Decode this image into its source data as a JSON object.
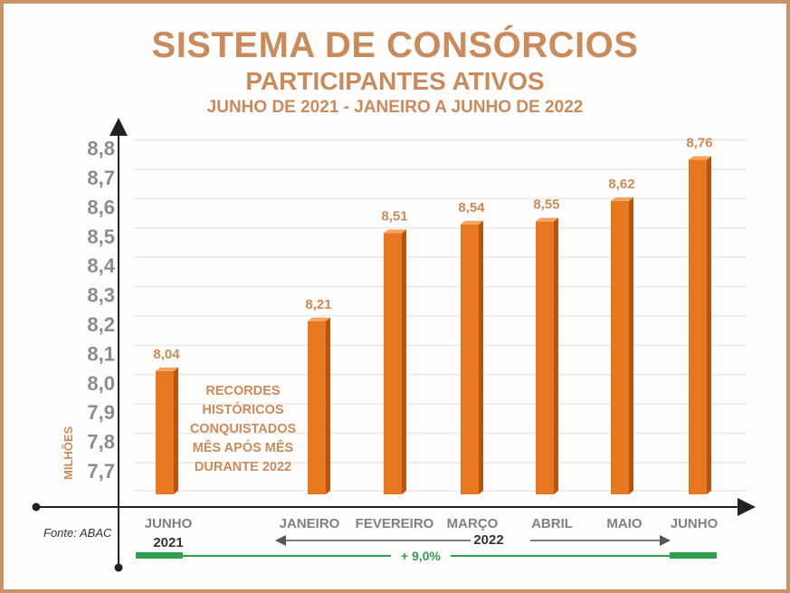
{
  "chart_data": {
    "type": "bar",
    "title": "SISTEMA DE CONSÓRCIOS",
    "subtitle": "PARTICIPANTES ATIVOS",
    "period": "JUNHO DE 2021 - JANEIRO A JUNHO DE 2022",
    "ylabel": "MILHÕES",
    "yticks": [
      "8,8",
      "8,7",
      "8,6",
      "8,5",
      "8,4",
      "8,3",
      "8,2",
      "8,1",
      "8,0",
      "7,9",
      "7,8",
      "7,7"
    ],
    "ylim": [
      7.6,
      8.8
    ],
    "grid": true,
    "categories": [
      "JUNHO",
      "JANEIRO",
      "FEVEREIRO",
      "MARÇO",
      "ABRIL",
      "MAIO",
      "JUNHO"
    ],
    "values": [
      8.04,
      8.21,
      8.51,
      8.54,
      8.55,
      8.62,
      8.76
    ],
    "value_labels": [
      "8,04",
      "8,21",
      "8,51",
      "8,54",
      "8,55",
      "8,62",
      "8,76"
    ],
    "years": [
      "2021",
      "2022"
    ],
    "annotation": [
      "RECORDES",
      "HISTÓRICOS",
      "CONQUISTADOS",
      "MÊS APÓS MÊS",
      "DURANTE 2022"
    ],
    "growth_label": "+ 9,0%",
    "source": "Fonte: ABAC"
  },
  "colors": {
    "bar_front": "#e87722",
    "bar_side": "#b65410",
    "bar_top": "#f3a462",
    "accent": "#c98a5c",
    "growth_line": "#2e9e4f",
    "frame": "#c9926a"
  }
}
